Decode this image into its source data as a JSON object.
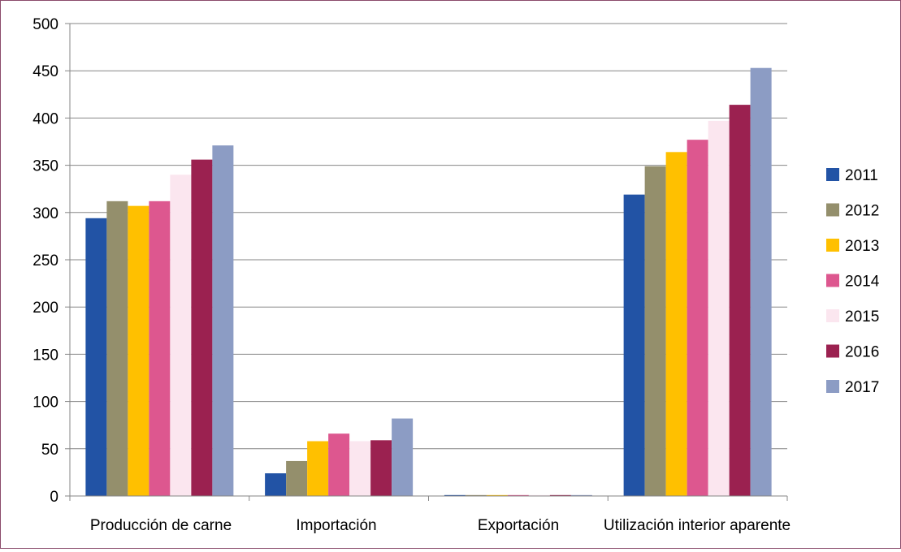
{
  "chart_data": {
    "type": "bar",
    "title": "",
    "xlabel": "",
    "ylabel": "",
    "ylim": [
      0,
      500
    ],
    "yticks": [
      0,
      50,
      100,
      150,
      200,
      250,
      300,
      350,
      400,
      450,
      500
    ],
    "grid": true,
    "legend_position": "right",
    "categories": [
      "Producción de carne",
      "Importación",
      "Exportación",
      "Utilización interior aparente"
    ],
    "series": [
      {
        "name": "2011",
        "color": "#2253a5",
        "values": [
          294,
          24,
          1,
          319
        ]
      },
      {
        "name": "2012",
        "color": "#948f6c",
        "values": [
          312,
          37,
          1,
          349
        ]
      },
      {
        "name": "2013",
        "color": "#ffc000",
        "values": [
          307,
          58,
          1,
          364
        ]
      },
      {
        "name": "2014",
        "color": "#dd578f",
        "values": [
          312,
          66,
          1,
          377
        ]
      },
      {
        "name": "2015",
        "color": "#fbe6ef",
        "values": [
          340,
          58,
          1,
          397
        ]
      },
      {
        "name": "2016",
        "color": "#9b2150",
        "values": [
          356,
          59,
          1,
          414
        ]
      },
      {
        "name": "2017",
        "color": "#8c9cc4",
        "values": [
          371,
          82,
          1,
          453
        ]
      }
    ]
  }
}
